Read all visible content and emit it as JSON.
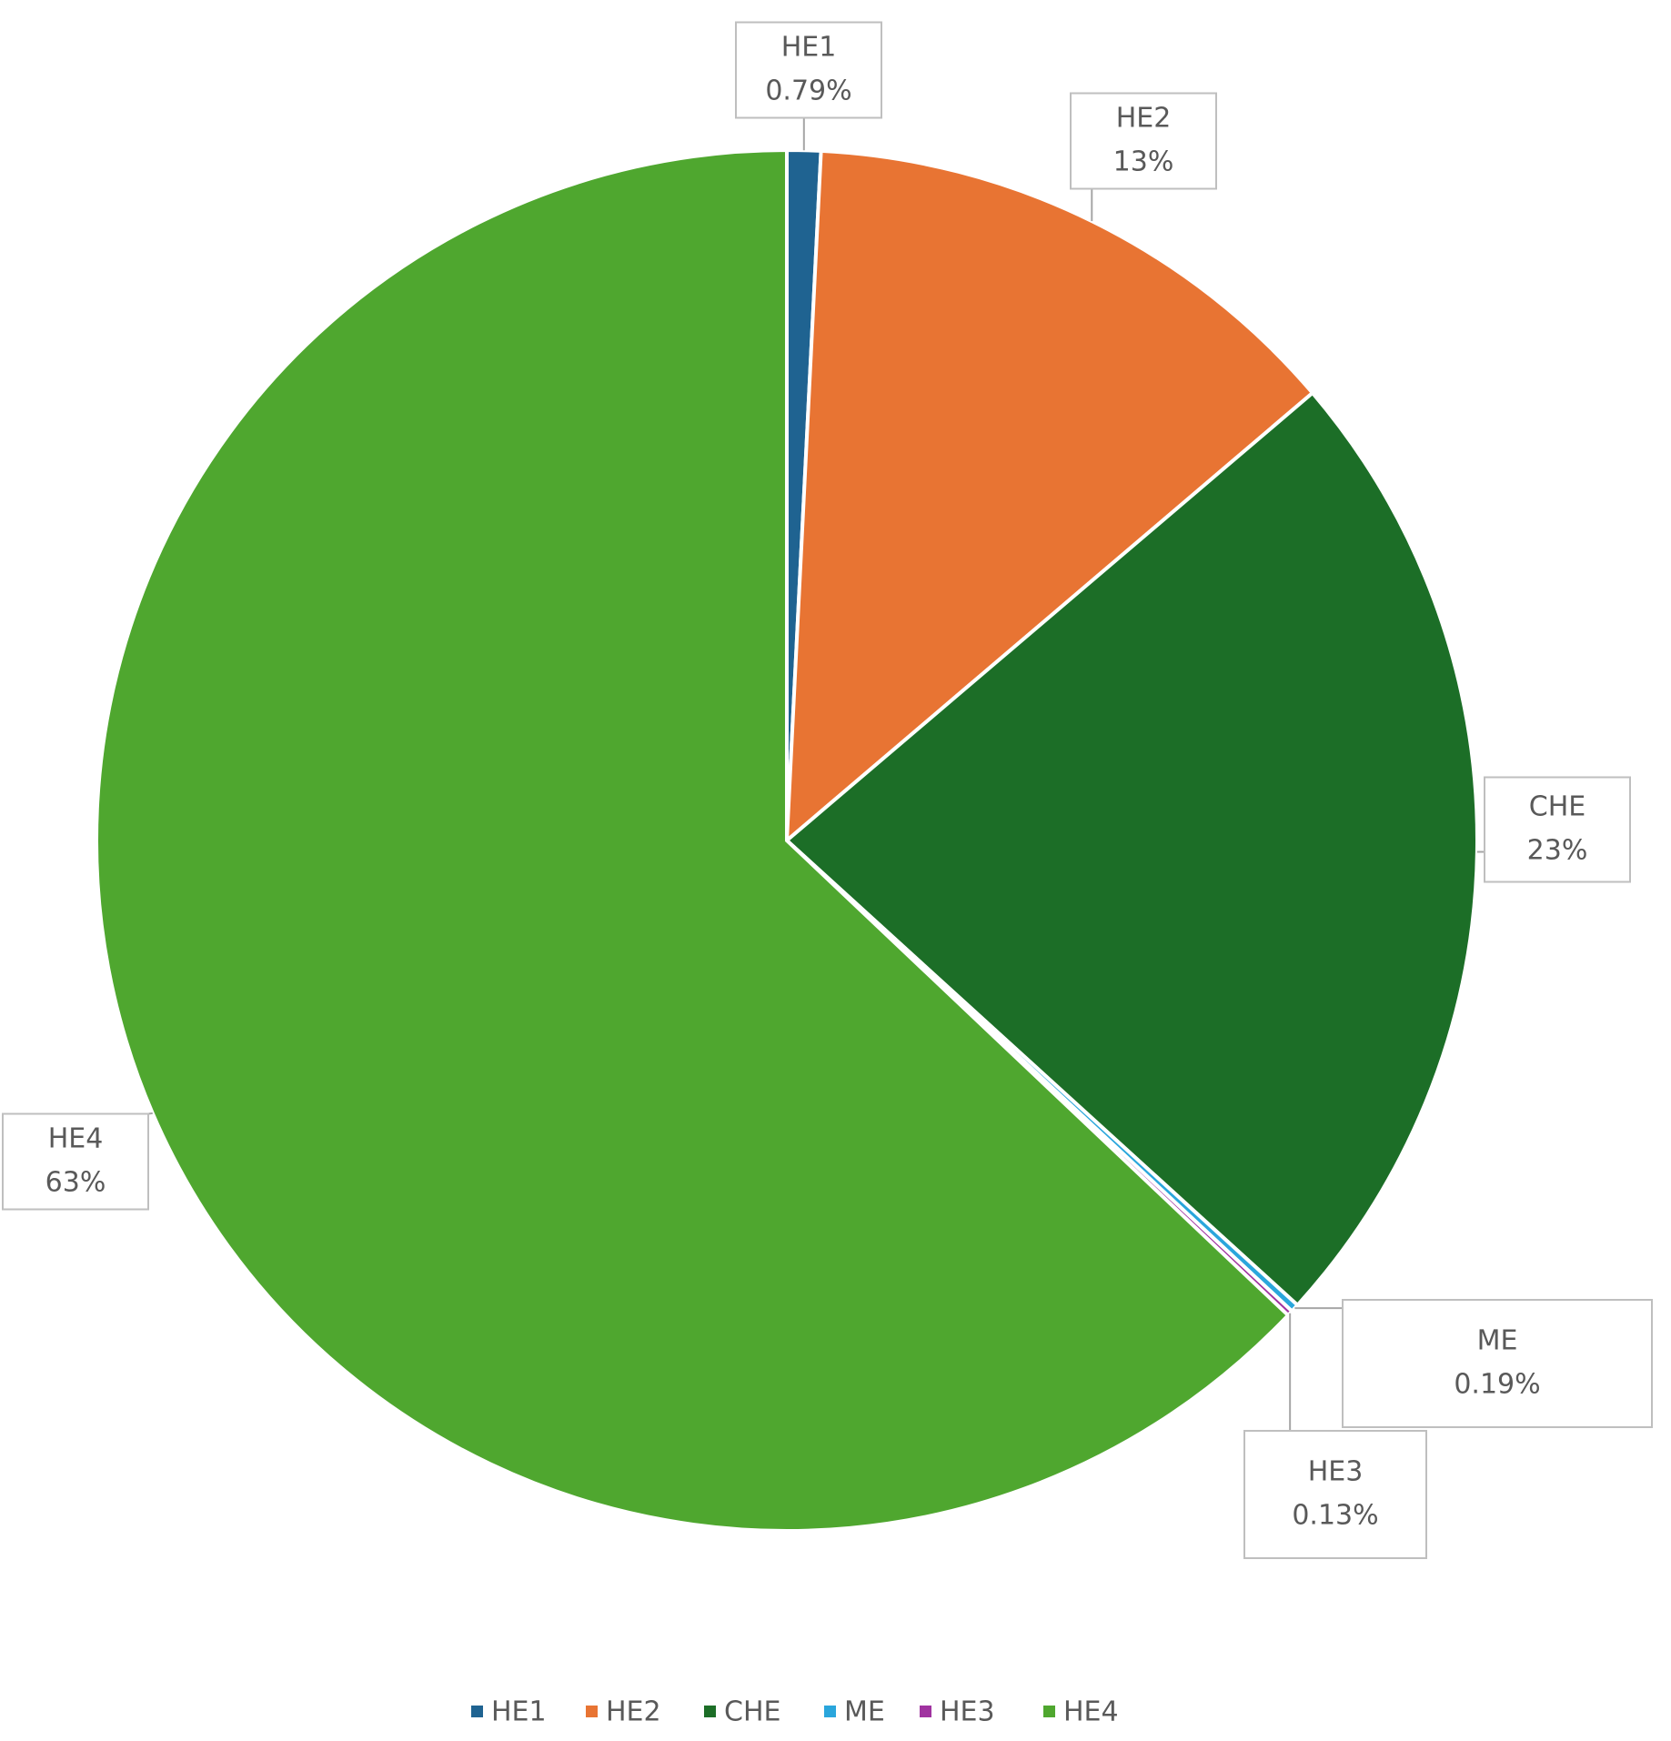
{
  "chart_data": {
    "type": "pie",
    "categories": [
      "HE1",
      "HE2",
      "CHE",
      "ME",
      "HE3",
      "HE4"
    ],
    "values": [
      0.79,
      13,
      23,
      0.19,
      0.13,
      63
    ],
    "value_labels": [
      "0.79%",
      "13%",
      "23%",
      "0.19%",
      "0.13%",
      "63%"
    ],
    "colors": [
      "#1f6391",
      "#e87433",
      "#1c6e27",
      "#2aa6dc",
      "#a033a0",
      "#4fa72f"
    ],
    "legend": "bottom"
  }
}
